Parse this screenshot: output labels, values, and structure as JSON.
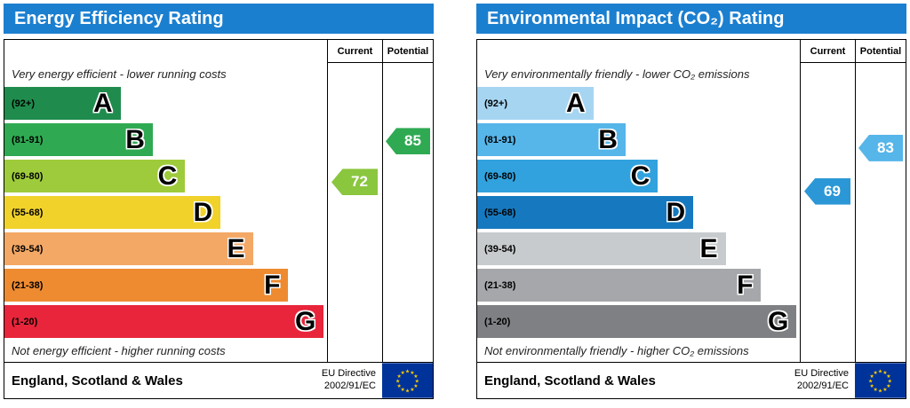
{
  "page": {
    "background": "#ffffff",
    "header_color": "#1b7fd0"
  },
  "charts": [
    {
      "title": "Energy Efficiency Rating",
      "header_color": "#1b7fd0",
      "columns": {
        "current": "Current",
        "potential": "Potential"
      },
      "top_note": "Very energy efficient - lower running costs",
      "bottom_note": "Not energy efficient - higher running costs",
      "bands": [
        {
          "range": "(92+)",
          "letter": "A",
          "color": "#1f8c4d",
          "width": 36
        },
        {
          "range": "(81-91)",
          "letter": "B",
          "color": "#2faa53",
          "width": 46
        },
        {
          "range": "(69-80)",
          "letter": "C",
          "color": "#9ecb3b",
          "width": 56
        },
        {
          "range": "(55-68)",
          "letter": "D",
          "color": "#f1d22a",
          "width": 67
        },
        {
          "range": "(39-54)",
          "letter": "E",
          "color": "#f3a866",
          "width": 77
        },
        {
          "range": "(21-38)",
          "letter": "F",
          "color": "#ee8b31",
          "width": 88
        },
        {
          "range": "(1-20)",
          "letter": "G",
          "color": "#e8253b",
          "width": 99
        }
      ],
      "current": {
        "value": 72,
        "color": "#8bc63f"
      },
      "potential": {
        "value": 85,
        "color": "#2faa53"
      },
      "footer": {
        "region": "England, Scotland & Wales",
        "directive_line1": "EU Directive",
        "directive_line2": "2002/91/EC",
        "flag_background": "#003399",
        "flag_stars": "#ffcc00"
      }
    },
    {
      "title": "Environmental Impact (CO₂) Rating",
      "header_color": "#1b7fd0",
      "columns": {
        "current": "Current",
        "potential": "Potential"
      },
      "top_note": "Very environmentally friendly - lower CO₂ emissions",
      "bottom_note": "Not environmentally friendly - higher CO₂ emissions",
      "bands": [
        {
          "range": "(92+)",
          "letter": "A",
          "color": "#a6d5f2",
          "width": 36
        },
        {
          "range": "(81-91)",
          "letter": "B",
          "color": "#56b5e9",
          "width": 46
        },
        {
          "range": "(69-80)",
          "letter": "C",
          "color": "#31a2dd",
          "width": 56
        },
        {
          "range": "(55-68)",
          "letter": "D",
          "color": "#1679bf",
          "width": 67
        },
        {
          "range": "(39-54)",
          "letter": "E",
          "color": "#c8cbcd",
          "width": 77
        },
        {
          "range": "(21-38)",
          "letter": "F",
          "color": "#a5a7aa",
          "width": 88
        },
        {
          "range": "(1-20)",
          "letter": "G",
          "color": "#7e8083",
          "width": 99
        }
      ],
      "current": {
        "value": 69,
        "color": "#2b97d6"
      },
      "potential": {
        "value": 83,
        "color": "#56b5e9"
      },
      "footer": {
        "region": "England, Scotland & Wales",
        "directive_line1": "EU Directive",
        "directive_line2": "2002/91/EC",
        "flag_background": "#003399",
        "flag_stars": "#ffcc00"
      }
    }
  ],
  "chart_data": [
    {
      "type": "bar",
      "title": "Energy Efficiency Rating",
      "categories": [
        "A",
        "B",
        "C",
        "D",
        "E",
        "F",
        "G"
      ],
      "band_ranges": [
        "92+",
        "81-91",
        "69-80",
        "55-68",
        "39-54",
        "21-38",
        "1-20"
      ],
      "bar_lengths_pct": [
        36,
        46,
        56,
        67,
        77,
        88,
        99
      ],
      "current": 72,
      "potential": 85,
      "current_band": "C",
      "potential_band": "B",
      "top_annotation": "Very energy efficient - lower running costs",
      "bottom_annotation": "Not energy efficient - higher running costs",
      "footer": "England, Scotland & Wales",
      "directive": "EU Directive 2002/91/EC"
    },
    {
      "type": "bar",
      "title": "Environmental Impact (CO₂) Rating",
      "categories": [
        "A",
        "B",
        "C",
        "D",
        "E",
        "F",
        "G"
      ],
      "band_ranges": [
        "92+",
        "81-91",
        "69-80",
        "55-68",
        "39-54",
        "21-38",
        "1-20"
      ],
      "bar_lengths_pct": [
        36,
        46,
        56,
        67,
        77,
        88,
        99
      ],
      "current": 69,
      "potential": 83,
      "current_band": "C",
      "potential_band": "B",
      "top_annotation": "Very environmentally friendly - lower CO₂ emissions",
      "bottom_annotation": "Not environmentally friendly - higher CO₂ emissions",
      "footer": "England, Scotland & Wales",
      "directive": "EU Directive 2002/91/EC"
    }
  ]
}
